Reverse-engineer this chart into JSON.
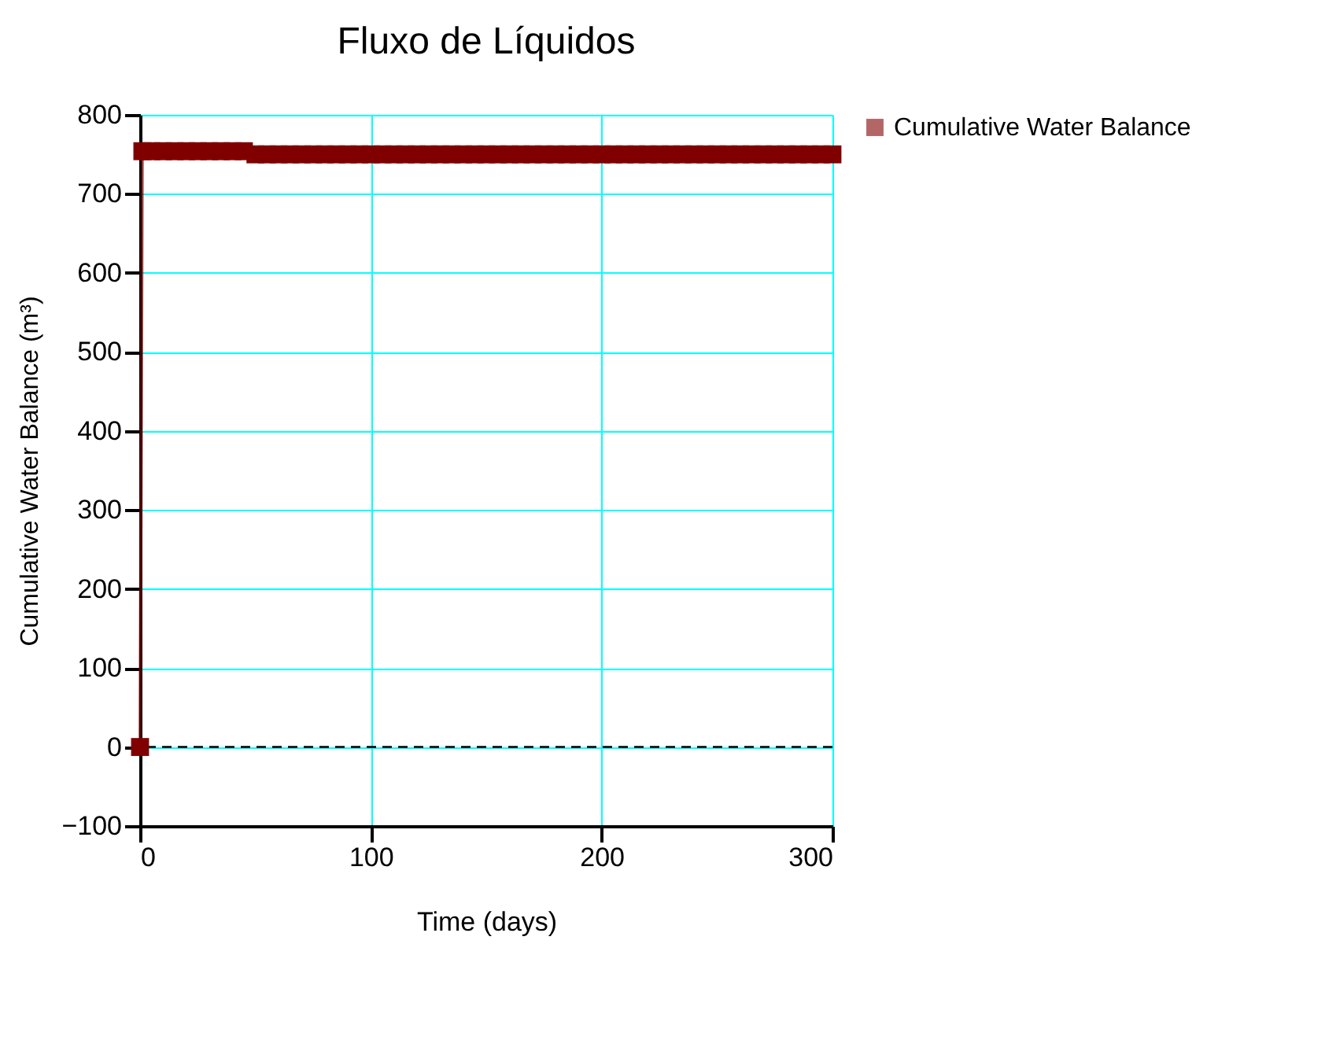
{
  "chart_data": {
    "type": "line",
    "title": "Fluxo de Líquidos",
    "xlabel": "Time (days)",
    "ylabel": "Cumulative Water Balance (m³)",
    "xlim": [
      0,
      300
    ],
    "xticks": [
      0,
      100,
      200,
      300
    ],
    "ylim": [
      -100,
      800
    ],
    "yticks": [
      -100,
      0,
      100,
      200,
      300,
      400,
      500,
      600,
      700,
      800
    ],
    "grid": true,
    "legend": "right",
    "marker": "square",
    "line_style": "solid",
    "ref_lines": [
      {
        "axis": "y",
        "value": 0,
        "label": null,
        "color": "#000000",
        "line_style": "dashed"
      }
    ],
    "series": [
      {
        "name": "Cumulative Water Balance",
        "color": "#800000",
        "x": [
          0,
          1,
          5,
          10,
          15,
          20,
          25,
          30,
          35,
          40,
          45,
          50,
          55,
          60,
          65,
          70,
          75,
          80,
          85,
          90,
          95,
          100,
          105,
          110,
          115,
          120,
          125,
          130,
          135,
          140,
          145,
          150,
          155,
          160,
          165,
          170,
          175,
          180,
          185,
          190,
          195,
          200,
          205,
          210,
          215,
          220,
          225,
          230,
          235,
          240,
          245,
          250,
          255,
          260,
          265,
          270,
          275,
          280,
          285,
          290,
          295,
          300
        ],
        "values": [
          0,
          754,
          754,
          754,
          754,
          754,
          754,
          754,
          754,
          754,
          754,
          750,
          750,
          750,
          750,
          750,
          750,
          750,
          750,
          750,
          750,
          750,
          750,
          750,
          750,
          750,
          750,
          750,
          750,
          750,
          750,
          750,
          750,
          750,
          750,
          750,
          750,
          750,
          750,
          750,
          750,
          750,
          750,
          750,
          750,
          750,
          750,
          750,
          750,
          750,
          750,
          750,
          750,
          750,
          750,
          750,
          750,
          750,
          750,
          750,
          750,
          750
        ]
      }
    ]
  }
}
